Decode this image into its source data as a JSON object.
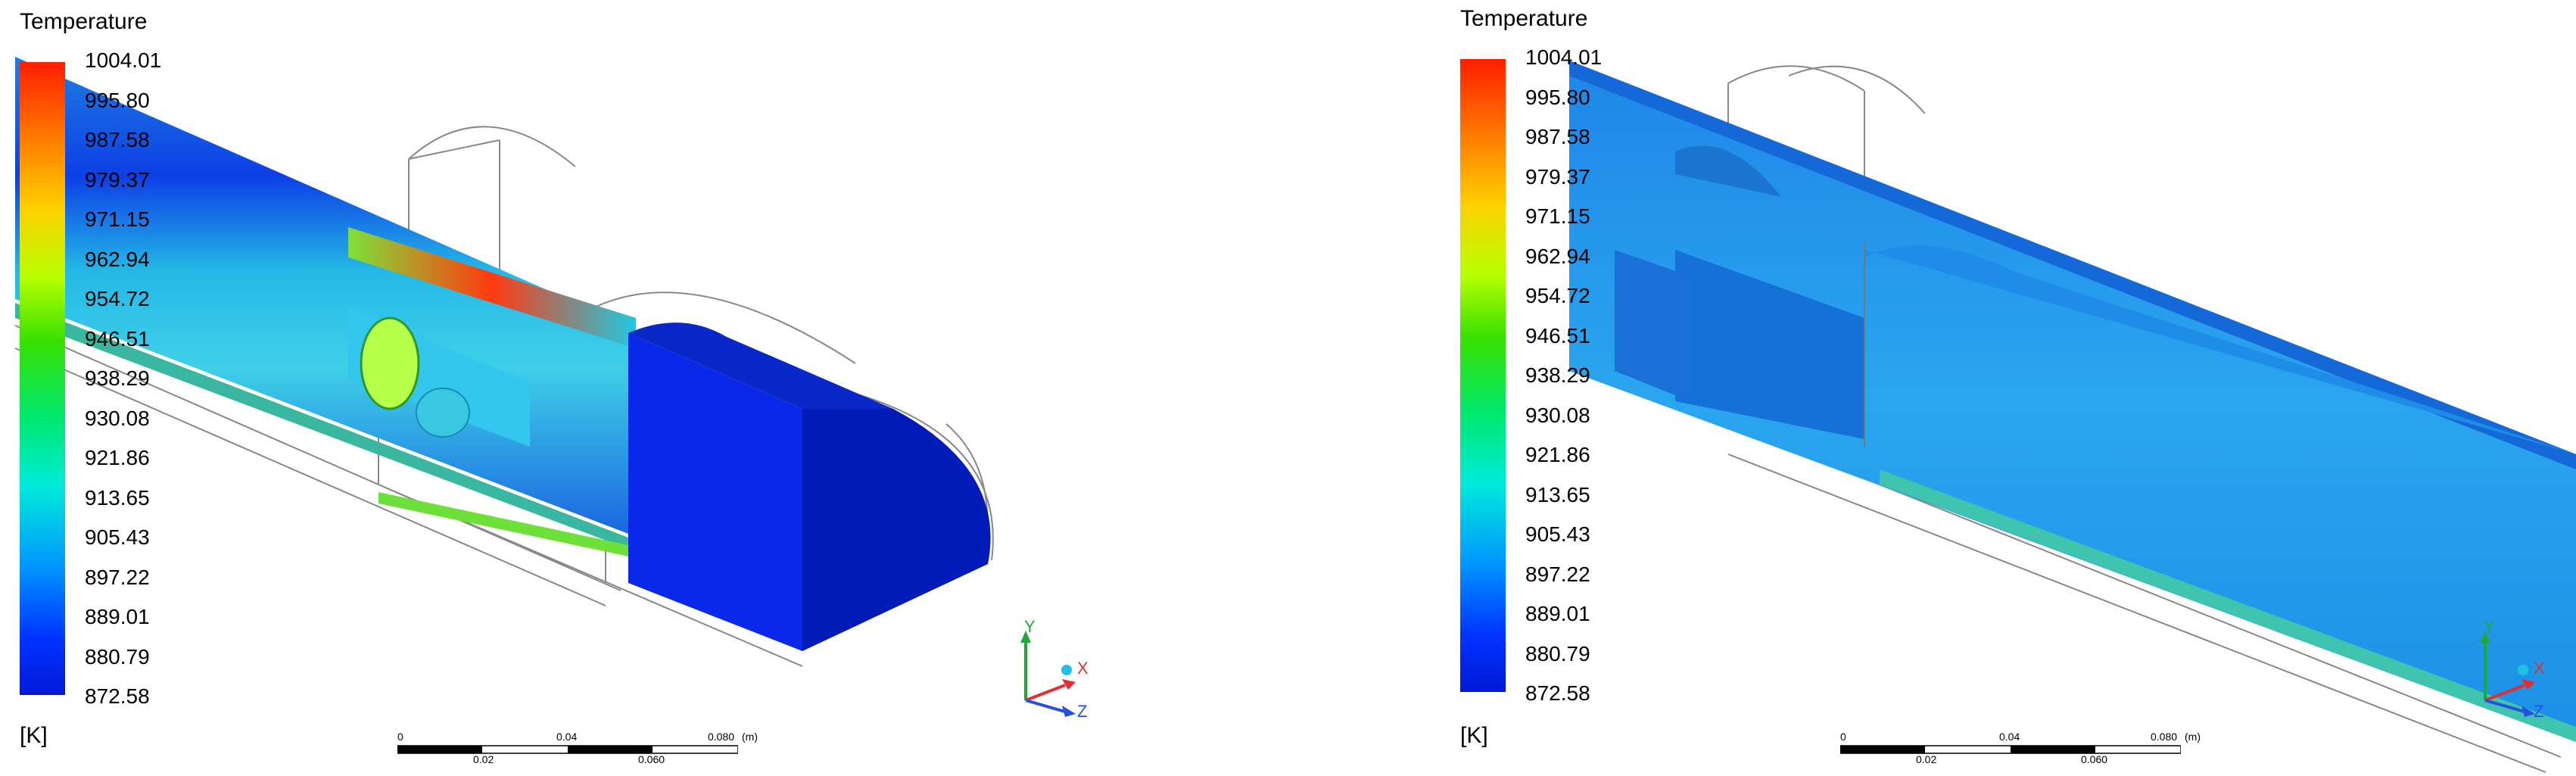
{
  "panels": [
    {
      "legend": {
        "title": "Temperature",
        "unit": "[K]",
        "ticks": [
          "1004.01",
          "995.80",
          "987.58",
          "979.37",
          "971.15",
          "962.94",
          "954.72",
          "946.51",
          "938.29",
          "930.08",
          "921.86",
          "913.65",
          "905.43",
          "897.22",
          "889.01",
          "880.79",
          "872.58"
        ]
      },
      "scale": {
        "top_labels": [
          "0",
          "0.04",
          "0.080"
        ],
        "unit": "(m)",
        "bottom_labels": [
          "0.02",
          "0.060"
        ]
      },
      "axes": {
        "y": "Y",
        "x": "X",
        "z": "Z"
      }
    },
    {
      "legend": {
        "title": "Temperature",
        "unit": "[K]",
        "ticks": [
          "1004.01",
          "995.80",
          "987.58",
          "979.37",
          "971.15",
          "962.94",
          "954.72",
          "946.51",
          "938.29",
          "930.08",
          "921.86",
          "913.65",
          "905.43",
          "897.22",
          "889.01",
          "880.79",
          "872.58"
        ]
      },
      "scale": {
        "top_labels": [
          "0",
          "0.04",
          "0.080"
        ],
        "unit": "(m)",
        "bottom_labels": [
          "0.02",
          "0.060"
        ]
      },
      "axes": {
        "y": "Y",
        "x": "X",
        "z": "Z"
      }
    }
  ],
  "colors": {
    "hot": "#ff1e00",
    "cool": "#0019d6",
    "mid": "#00eadb",
    "axis_x": "#e03030",
    "axis_y": "#22a83a",
    "axis_z": "#2850e0"
  }
}
